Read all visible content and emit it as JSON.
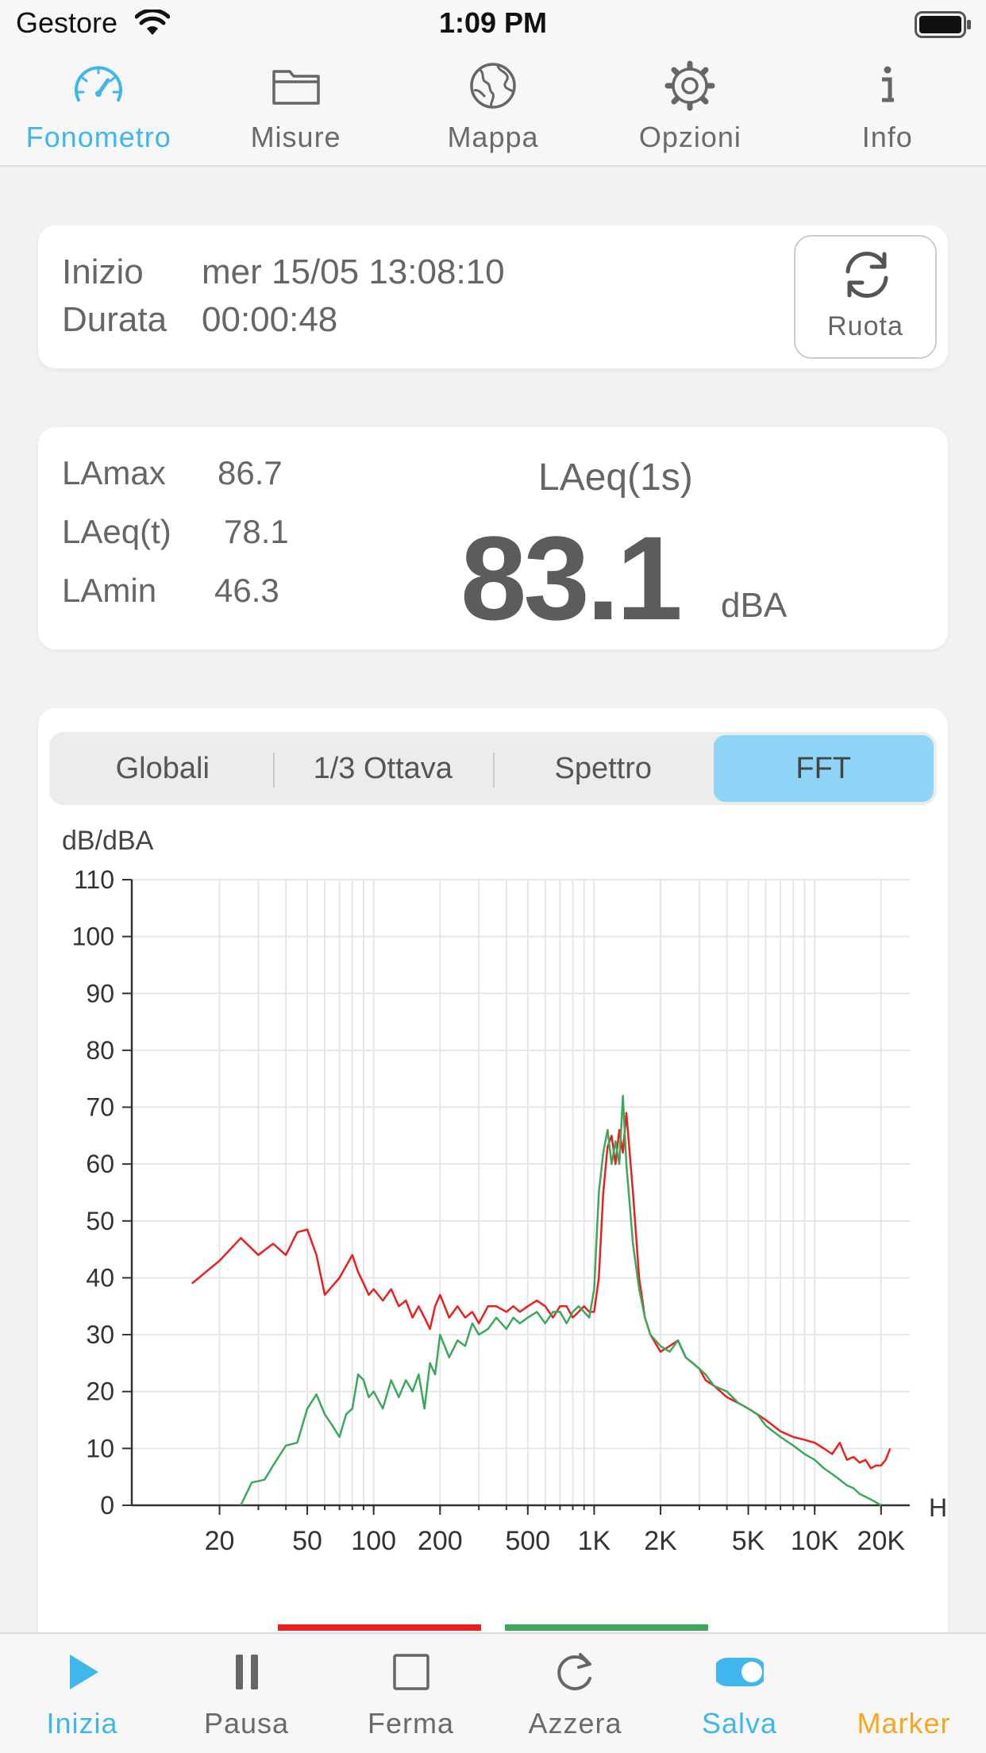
{
  "status": {
    "carrier": "Gestore",
    "time": "1:09 PM"
  },
  "top_tabs": [
    {
      "label": "Fonometro",
      "icon": "speedometer-icon",
      "active": true
    },
    {
      "label": "Misure",
      "icon": "folder-icon",
      "active": false
    },
    {
      "label": "Mappa",
      "icon": "globe-icon",
      "active": false
    },
    {
      "label": "Opzioni",
      "icon": "gear-icon",
      "active": false
    },
    {
      "label": "Info",
      "icon": "info-icon",
      "active": false
    }
  ],
  "session": {
    "start_label": "Inizio",
    "start_value": "mer 15/05 13:08:10",
    "duration_label": "Durata",
    "duration_value": "00:00:48",
    "rotate_label": "Ruota"
  },
  "levels": {
    "lamax_label": "LAmax",
    "lamax_value": "86.7",
    "laeqt_label": "LAeq(t)",
    "laeqt_value": "78.1",
    "lamin_label": "LAmin",
    "lamin_value": "46.3",
    "main_title": "LAeq(1s)",
    "main_value": "83.1",
    "main_unit": "dBA"
  },
  "segments": [
    {
      "label": "Globali",
      "active": false
    },
    {
      "label": "1/3 Ottava",
      "active": false
    },
    {
      "label": "Spettro",
      "active": false
    },
    {
      "label": "FFT",
      "active": true
    }
  ],
  "chart_data": {
    "type": "line",
    "ylabel": "dB/dBA",
    "xlabel": "Hz",
    "xscale": "log",
    "xlim": [
      8,
      27000
    ],
    "ylim": [
      0,
      110
    ],
    "y_ticks": [
      0,
      10,
      20,
      30,
      40,
      50,
      60,
      70,
      80,
      90,
      100,
      110
    ],
    "x_ticks": [
      {
        "value": 20,
        "label": "20"
      },
      {
        "value": 50,
        "label": "50"
      },
      {
        "value": 100,
        "label": "100"
      },
      {
        "value": 200,
        "label": "200"
      },
      {
        "value": 500,
        "label": "500"
      },
      {
        "value": 1000,
        "label": "1K"
      },
      {
        "value": 2000,
        "label": "2K"
      },
      {
        "value": 5000,
        "label": "5K"
      },
      {
        "value": 10000,
        "label": "10K"
      },
      {
        "value": 20000,
        "label": "20K"
      }
    ],
    "grid": true,
    "series": [
      {
        "color": "#e8211f",
        "x": [
          15,
          20,
          25,
          30,
          35,
          40,
          45,
          50,
          55,
          60,
          70,
          80,
          85,
          90,
          95,
          100,
          110,
          120,
          130,
          140,
          150,
          160,
          170,
          180,
          190,
          200,
          220,
          240,
          260,
          280,
          300,
          330,
          360,
          400,
          430,
          460,
          500,
          550,
          600,
          650,
          700,
          750,
          800,
          850,
          900,
          950,
          1000,
          1050,
          1100,
          1150,
          1200,
          1250,
          1300,
          1350,
          1400,
          1500,
          1600,
          1700,
          1800,
          2000,
          2200,
          2400,
          2600,
          2800,
          3000,
          3200,
          3500,
          4000,
          4500,
          5000,
          5500,
          6000,
          7000,
          8000,
          9000,
          10000,
          11000,
          12000,
          13000,
          14000,
          15000,
          16000,
          17000,
          18000,
          19000,
          20000,
          21000,
          22000
        ],
        "y": [
          39,
          43,
          47,
          44,
          46,
          44,
          48,
          48.5,
          44,
          37,
          40,
          44,
          41,
          39,
          37,
          38,
          36,
          38,
          35,
          36,
          33,
          35,
          33,
          31,
          35,
          37,
          33,
          35,
          33,
          34,
          32,
          35,
          35,
          34,
          35,
          34,
          35,
          36,
          35,
          33,
          35,
          35,
          33,
          34,
          35,
          34,
          34,
          40,
          55,
          63,
          65,
          60,
          66,
          62,
          69,
          55,
          40,
          33,
          30,
          27,
          28,
          29,
          26,
          25,
          24,
          22,
          21,
          19,
          18,
          17,
          16,
          15,
          13,
          12,
          11.5,
          11,
          10,
          9,
          11,
          8,
          8.5,
          7.5,
          8,
          6.5,
          7,
          7,
          8,
          10
        ]
      },
      {
        "color": "#3ca85c",
        "x": [
          25,
          28,
          32,
          35,
          40,
          45,
          50,
          55,
          60,
          65,
          70,
          75,
          80,
          85,
          90,
          95,
          100,
          110,
          120,
          130,
          140,
          150,
          160,
          170,
          180,
          190,
          200,
          220,
          240,
          260,
          280,
          300,
          330,
          360,
          400,
          430,
          460,
          500,
          550,
          600,
          650,
          700,
          750,
          800,
          850,
          900,
          950,
          1000,
          1050,
          1100,
          1150,
          1200,
          1250,
          1300,
          1350,
          1400,
          1500,
          1600,
          1700,
          1800,
          2000,
          2200,
          2400,
          2600,
          2800,
          3000,
          3200,
          3500,
          4000,
          4500,
          5000,
          5500,
          6000,
          7000,
          8000,
          9000,
          10000,
          11000,
          12000,
          13000,
          14000,
          15000,
          16000,
          17000,
          18000,
          19000,
          20000
        ],
        "y": [
          0,
          4,
          4.5,
          7,
          10.5,
          11,
          17,
          19.5,
          16,
          14,
          12,
          16,
          17,
          23,
          22,
          19,
          20,
          17,
          22,
          19,
          22,
          20,
          23,
          17,
          25,
          23,
          30,
          26,
          29,
          28,
          32,
          30,
          31,
          33,
          31,
          33,
          32,
          33,
          34,
          32,
          34,
          34,
          32,
          34,
          35,
          34,
          33,
          38,
          55,
          62,
          66,
          60,
          64,
          60,
          72,
          60,
          46,
          38,
          33,
          30,
          28,
          27,
          29,
          26,
          25,
          24,
          23,
          21,
          20,
          18,
          17,
          16,
          14,
          12,
          10.5,
          9,
          8,
          6.5,
          5.5,
          4.5,
          3.5,
          3,
          2,
          1.5,
          1,
          0.5,
          0
        ]
      }
    ]
  },
  "bottom_bar": [
    {
      "label": "Inizia",
      "icon": "play-icon",
      "color": "#3fb7ec"
    },
    {
      "label": "Pausa",
      "icon": "pause-icon",
      "color": "#6a6a6a"
    },
    {
      "label": "Ferma",
      "icon": "stop-icon",
      "color": "#6a6a6a"
    },
    {
      "label": "Azzera",
      "icon": "reset-icon",
      "color": "#6a6a6a"
    },
    {
      "label": "Salva",
      "icon": "toggle-icon",
      "color": "#3fb7ec"
    },
    {
      "label": "Marker",
      "icon": "",
      "color": "#f5a623"
    }
  ]
}
